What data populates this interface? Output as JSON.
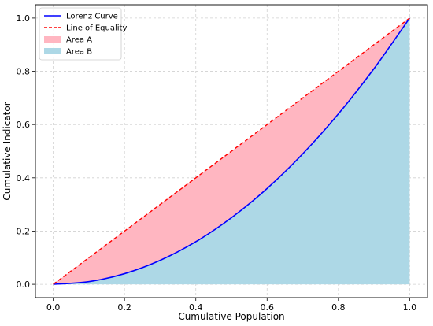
{
  "chart_data": {
    "type": "area",
    "title": "",
    "xlabel": "Cumulative Population",
    "ylabel": "Cumulative Indicator",
    "xlim": [
      -0.05,
      1.05
    ],
    "ylim": [
      -0.05,
      1.05
    ],
    "grid": true,
    "legend_position": "top-left",
    "x_ticks": [
      0.0,
      0.2,
      0.4,
      0.6,
      0.8,
      1.0
    ],
    "x_tick_labels": [
      "0.0",
      "0.2",
      "0.4",
      "0.6",
      "0.8",
      "1.0"
    ],
    "y_ticks": [
      0.0,
      0.2,
      0.4,
      0.6,
      0.8,
      1.0
    ],
    "y_tick_labels": [
      "0.0",
      "0.2",
      "0.4",
      "0.6",
      "0.8",
      "1.0"
    ],
    "series": [
      {
        "name": "Lorenz Curve",
        "kind": "line",
        "color": "#0000ff",
        "style": "solid",
        "x": [
          0.0,
          0.1,
          0.2,
          0.3,
          0.4,
          0.5,
          0.6,
          0.7,
          0.8,
          0.9,
          1.0
        ],
        "y": [
          0.0,
          0.01,
          0.04,
          0.09,
          0.16,
          0.25,
          0.36,
          0.49,
          0.64,
          0.81,
          1.0
        ]
      },
      {
        "name": "Line of Equality",
        "kind": "line",
        "color": "#ff0000",
        "style": "dashed",
        "x": [
          0.0,
          1.0
        ],
        "y": [
          0.0,
          1.0
        ]
      },
      {
        "name": "Area A",
        "kind": "fill_between",
        "color": "#ffb6c1",
        "between": [
          "Lorenz Curve",
          "Line of Equality"
        ]
      },
      {
        "name": "Area B",
        "kind": "fill_below",
        "color": "#add8e6",
        "below": "Lorenz Curve"
      }
    ]
  }
}
